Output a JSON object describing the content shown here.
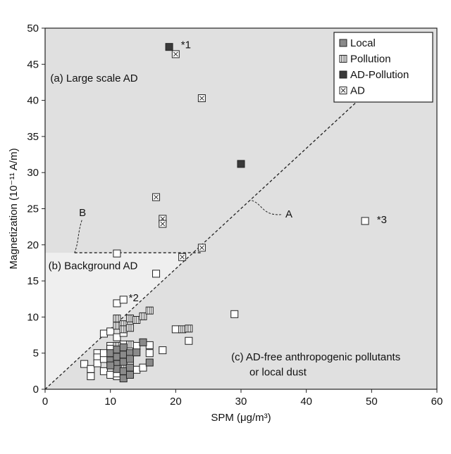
{
  "chart_data": {
    "type": "scatter",
    "xlabel": "SPM (μg/m³)",
    "ylabel": "Magnetization (10⁻¹¹ A/m)",
    "xlim": [
      0,
      60
    ],
    "ylim": [
      0,
      50
    ],
    "xticks": [
      0,
      10,
      20,
      30,
      40,
      50,
      60
    ],
    "yticks": [
      0,
      5,
      10,
      15,
      20,
      25,
      30,
      35,
      40,
      45,
      50
    ],
    "grid": false,
    "legend_position": "top-right",
    "colors": {
      "plot_bg": "#e0e0e0",
      "background_region": "#efefef",
      "local": "#8a8a8a",
      "pollution": "#ffffff",
      "ad_pollution": "#3a3a3a",
      "ad": "#ffffff",
      "outline": "#222222"
    },
    "region_labels": [
      {
        "text": "(a) Large scale AD",
        "x": 0.8,
        "y": 42.6
      },
      {
        "text": "(b) Background AD",
        "x": 0.5,
        "y": 16.6
      },
      {
        "text": "(c) AD-free anthropogenic pollutants",
        "x": 28.5,
        "y": 4.0
      },
      {
        "text": "or local dust",
        "x": 31.3,
        "y": 1.9
      }
    ],
    "annotations": [
      {
        "text": "*1",
        "x": 20.8,
        "y": 47.2
      },
      {
        "text": "*2",
        "x": 12.8,
        "y": 12.2
      },
      {
        "text": "*3",
        "x": 50.8,
        "y": 23.0
      },
      {
        "text": "A",
        "x": 36.8,
        "y": 23.8
      },
      {
        "text": "B",
        "x": 5.2,
        "y": 24.0
      }
    ],
    "reference_lines": [
      {
        "name": "1:1 line",
        "x": [
          0,
          59
        ],
        "y": [
          0,
          49.2
        ]
      },
      {
        "name": "background level",
        "x": [
          4.5,
          24
        ],
        "y": [
          18.9,
          18.9
        ]
      }
    ],
    "series": [
      {
        "name": "Local",
        "marker": "filled-gray-square",
        "points": [
          [
            10,
            5.0
          ],
          [
            10,
            4.0
          ],
          [
            11,
            5.5
          ],
          [
            11,
            4.5
          ],
          [
            11,
            3.5
          ],
          [
            11,
            2.8
          ],
          [
            12,
            5.8
          ],
          [
            12,
            4.8
          ],
          [
            12,
            3.8
          ],
          [
            12,
            2.5
          ],
          [
            12,
            1.5
          ],
          [
            13,
            5.0
          ],
          [
            13,
            4.2
          ],
          [
            13,
            3.0
          ],
          [
            14,
            5.1
          ],
          [
            15,
            6.5
          ],
          [
            16,
            3.7
          ],
          [
            10,
            3.3
          ],
          [
            13,
            2.0
          ]
        ]
      },
      {
        "name": "Pollution",
        "marker": "white-square-vertical-hatch",
        "points": [
          [
            11,
            9.8
          ],
          [
            11,
            8.8
          ],
          [
            12,
            9.0
          ],
          [
            12,
            8.3
          ],
          [
            13,
            9.8
          ],
          [
            13,
            8.5
          ],
          [
            14,
            9.6
          ],
          [
            15,
            10.1
          ],
          [
            16,
            10.9
          ],
          [
            21,
            8.3
          ],
          [
            22,
            8.4
          ],
          [
            11,
            6.0
          ],
          [
            13,
            6.2
          ],
          [
            12,
            2.9
          ]
        ]
      },
      {
        "name": "AD-Pollution",
        "marker": "filled-dark-square",
        "points": [
          [
            19,
            47.4
          ],
          [
            30,
            31.2
          ]
        ]
      },
      {
        "name": "AD",
        "marker": "white-square-x",
        "points": [
          [
            20,
            46.4
          ],
          [
            24,
            40.3
          ],
          [
            17,
            26.6
          ],
          [
            18,
            23.6
          ],
          [
            18,
            22.9
          ],
          [
            24,
            19.6
          ],
          [
            21,
            18.3
          ]
        ]
      },
      {
        "name": "",
        "marker": "white-square",
        "points": [
          [
            49,
            23.3
          ],
          [
            11,
            18.8
          ],
          [
            17,
            16.0
          ],
          [
            11,
            11.9
          ],
          [
            12,
            12.4
          ],
          [
            9,
            7.7
          ],
          [
            10,
            8.0
          ],
          [
            11,
            7.2
          ],
          [
            12,
            7.8
          ],
          [
            29,
            10.4
          ],
          [
            20,
            8.3
          ],
          [
            22,
            6.7
          ],
          [
            18,
            5.4
          ],
          [
            6,
            3.5
          ],
          [
            7,
            2.8
          ],
          [
            7,
            1.8
          ],
          [
            8,
            5.0
          ],
          [
            8,
            4.4
          ],
          [
            8,
            3.6
          ],
          [
            9,
            2.5
          ],
          [
            9,
            4.2
          ],
          [
            9,
            5.0
          ],
          [
            10,
            6.0
          ],
          [
            10,
            5.6
          ],
          [
            10,
            2.0
          ],
          [
            11,
            1.8
          ],
          [
            13,
            5.5
          ],
          [
            13,
            3.6
          ],
          [
            14,
            2.7
          ],
          [
            15,
            3.0
          ],
          [
            16,
            6.1
          ],
          [
            16,
            5.0
          ],
          [
            14,
            6.0
          ],
          [
            11,
            2.2
          ],
          [
            12,
            6.2
          ]
        ]
      }
    ]
  }
}
